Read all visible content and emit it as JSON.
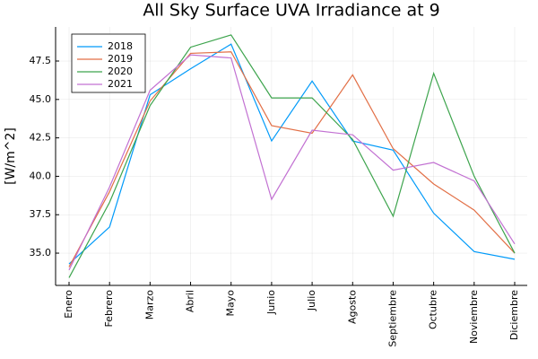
{
  "chart_data": {
    "type": "line",
    "title": "All Sky Surface UVA Irradiance at 9",
    "ylabel": "[W/m^2]",
    "categories": [
      "Enero",
      "Febrero",
      "Marzo",
      "Abril",
      "Mayo",
      "Junio",
      "Julio",
      "Agosto",
      "Septiembre",
      "Octubre",
      "Noviembre",
      "Diciembre"
    ],
    "series": [
      {
        "name": "2018",
        "color": "#009af9",
        "values": [
          34.3,
          36.7,
          45.3,
          47.0,
          48.6,
          42.3,
          46.2,
          42.3,
          41.7,
          37.6,
          35.1,
          34.6
        ]
      },
      {
        "name": "2019",
        "color": "#e26f46",
        "values": [
          34.1,
          39.0,
          44.9,
          48.0,
          48.1,
          43.3,
          42.8,
          46.6,
          41.8,
          39.5,
          37.8,
          35.0
        ]
      },
      {
        "name": "2020",
        "color": "#3da44d",
        "values": [
          33.4,
          38.3,
          44.6,
          48.4,
          49.2,
          45.1,
          45.1,
          42.4,
          37.4,
          46.7,
          40.0,
          35.0
        ]
      },
      {
        "name": "2021",
        "color": "#c271d2",
        "values": [
          33.9,
          39.3,
          45.6,
          47.9,
          47.7,
          38.5,
          43.0,
          42.7,
          40.4,
          40.9,
          39.7,
          35.6
        ]
      }
    ],
    "ylim": [
      32.9,
      49.72
    ],
    "yticks": [
      {
        "value": 35,
        "label": "35.0"
      },
      37.5,
      {
        "value": 40,
        "label": "40.0"
      },
      42.5,
      {
        "value": 45,
        "label": "45.0"
      },
      47.5
    ],
    "grid": true,
    "legend": "top-left"
  }
}
